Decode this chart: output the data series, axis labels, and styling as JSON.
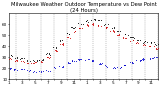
{
  "title": "Milwaukee Weather Outdoor Temperature vs Dew Point (24 Hours)",
  "bg_color": "#ffffff",
  "grid_color": "#888888",
  "temp": [
    28,
    27,
    26,
    25,
    25,
    26,
    30,
    36,
    42,
    48,
    53,
    57,
    59,
    60,
    59,
    57,
    54,
    51,
    48,
    45,
    43,
    41,
    40,
    38
  ],
  "dewpt": [
    20,
    19,
    19,
    18,
    17,
    17,
    18,
    20,
    22,
    25,
    27,
    28,
    28,
    27,
    24,
    22,
    20,
    21,
    23,
    25,
    27,
    28,
    29,
    30
  ],
  "hi_temp": [
    32,
    30,
    29,
    27,
    27,
    28,
    33,
    39,
    45,
    52,
    57,
    60,
    63,
    64,
    63,
    60,
    57,
    54,
    51,
    48,
    46,
    44,
    43,
    41
  ],
  "temp_color": "#cc0000",
  "dewpt_color": "#0000cc",
  "hi_color": "#000000",
  "ylim": [
    10,
    70
  ],
  "xlim": [
    0,
    23
  ],
  "tick_labels_x": [
    "1",
    "",
    "3",
    "",
    "5",
    "",
    "7",
    "",
    "9",
    "",
    "11",
    "",
    "1",
    "",
    "3",
    "",
    "5",
    "",
    "7",
    "",
    "9",
    "",
    "11",
    ""
  ],
  "tick_labels_y": [
    "10",
    "20",
    "30",
    "40",
    "50",
    "60"
  ],
  "title_fontsize": 3.8,
  "tick_fontsize": 3.0,
  "dot_size": 1.2
}
